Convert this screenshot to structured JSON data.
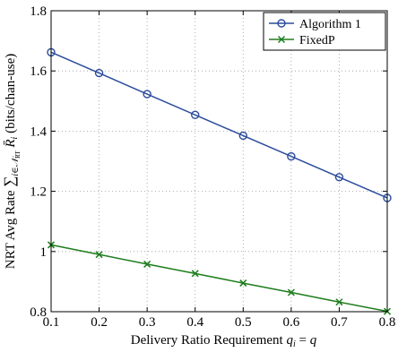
{
  "chart_data": {
    "type": "line",
    "title": "",
    "xlabel": "Delivery Ratio Requirement q_i = q",
    "ylabel": "NRT Avg Rate ∑ i∈N_RT R̄_i (bits/chan-use)",
    "x": [
      0.1,
      0.2,
      0.3,
      0.4,
      0.5,
      0.6,
      0.7,
      0.8
    ],
    "xlim": [
      0.1,
      0.8
    ],
    "ylim": [
      0.8,
      1.8
    ],
    "xticks": [
      "0.1",
      "0.2",
      "0.3",
      "0.4",
      "0.5",
      "0.6",
      "0.7",
      "0.8"
    ],
    "yticks": [
      "0.8",
      "1",
      "1.2",
      "1.4",
      "1.6",
      "1.8"
    ],
    "grid": true,
    "legend_position": "top-right",
    "series": [
      {
        "name": "Algorithm 1",
        "marker": "circle",
        "color": "#2b4c9b",
        "values": [
          1.662,
          1.593,
          1.523,
          1.454,
          1.385,
          1.316,
          1.247,
          1.178
        ]
      },
      {
        "name": "FixedP",
        "marker": "x",
        "color": "#1e7d1e",
        "values": [
          1.022,
          0.99,
          0.958,
          0.927,
          0.895,
          0.864,
          0.832,
          0.801
        ]
      }
    ]
  }
}
